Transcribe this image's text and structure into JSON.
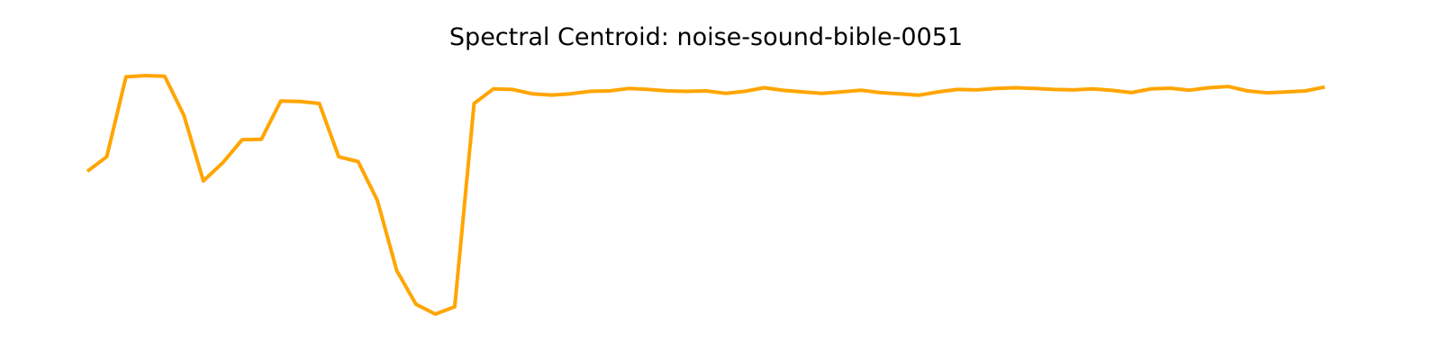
{
  "chart_data": {
    "type": "line",
    "title": "Spectral Centroid: noise-sound-bible-0051",
    "xlabel": "",
    "ylabel": "",
    "axes_visible": false,
    "grid": false,
    "legend": "none",
    "line_color": "#ffa500",
    "xlim": [
      0,
      64
    ],
    "ylim": [
      0,
      1
    ],
    "series": [
      {
        "values": [
          0.59,
          0.65,
          0.98,
          0.985,
          0.982,
          0.82,
          0.55,
          0.625,
          0.72,
          0.722,
          0.88,
          0.878,
          0.87,
          0.65,
          0.63,
          0.47,
          0.18,
          0.04,
          0.0,
          0.03,
          0.87,
          0.93,
          0.928,
          0.91,
          0.905,
          0.91,
          0.92,
          0.922,
          0.932,
          0.928,
          0.922,
          0.92,
          0.922,
          0.912,
          0.92,
          0.935,
          0.924,
          0.918,
          0.912,
          0.918,
          0.925,
          0.915,
          0.91,
          0.904,
          0.918,
          0.928,
          0.926,
          0.932,
          0.935,
          0.932,
          0.928,
          0.926,
          0.93,
          0.924,
          0.915,
          0.93,
          0.933,
          0.925,
          0.935,
          0.94,
          0.922,
          0.914,
          0.918,
          0.922,
          0.938
        ]
      }
    ]
  }
}
